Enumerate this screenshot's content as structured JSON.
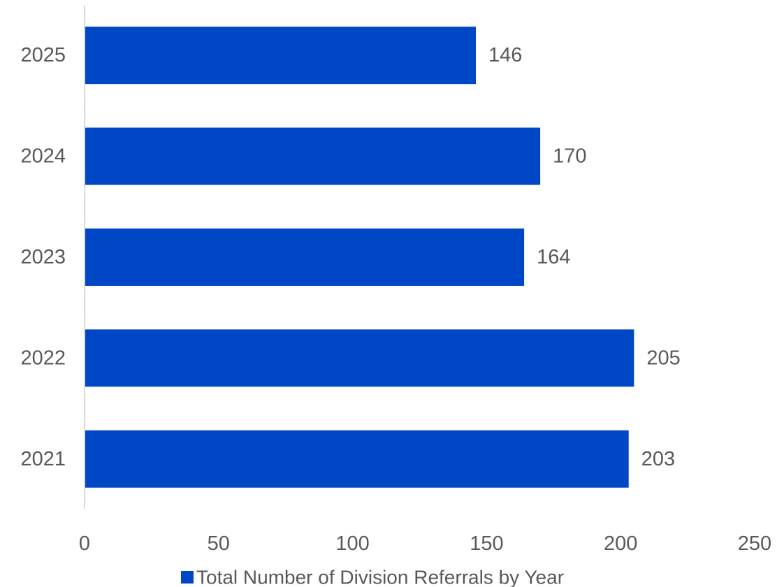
{
  "chart_data": {
    "type": "bar",
    "orientation": "horizontal",
    "categories": [
      "2025",
      "2024",
      "2023",
      "2022",
      "2021"
    ],
    "series": [
      {
        "name": "Total Number of Division Referrals by Year",
        "values": [
          146,
          170,
          164,
          205,
          203
        ]
      }
    ],
    "xlim": [
      0,
      250
    ],
    "xticks": [
      0,
      50,
      100,
      150,
      200,
      250
    ],
    "grid": false,
    "data_labels": true,
    "legend_position": "bottom",
    "colors": {
      "bar": "#0047C6",
      "axis": "#D9D9D9",
      "text": "#595959"
    }
  }
}
